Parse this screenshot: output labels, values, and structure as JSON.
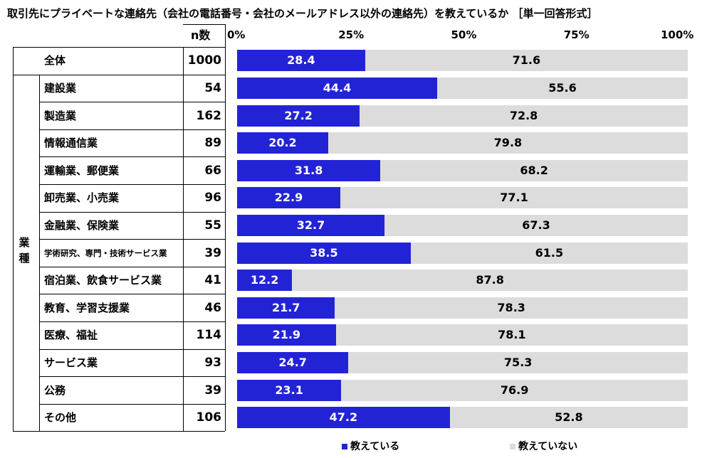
{
  "title": "取引先にプライベートな連絡先（会社の電話番号・会社のメールアドレス以外の連絡先）を教えているか ［単一回答形式］",
  "n_header": "n数",
  "group_label": "業種",
  "axis_ticks": [
    "0%",
    "25%",
    "50%",
    "75%",
    "100%"
  ],
  "legend": [
    {
      "label": "教えている",
      "color": "#2323d6"
    },
    {
      "label": "教えていない",
      "color": "#dcdcdc"
    }
  ],
  "chart_data": {
    "type": "bar",
    "orientation": "horizontal",
    "stacked": true,
    "xlim": [
      0,
      100
    ],
    "categories": [
      "全体",
      "建設業",
      "製造業",
      "情報通信業",
      "運輸業、郵便業",
      "卸売業、小売業",
      "金融業、保険業",
      "学術研究、専門・技術サービス業",
      "宿泊業、飲食サービス業",
      "教育、学習支援業",
      "医療、福祉",
      "サービス業",
      "公務",
      "その他"
    ],
    "n": [
      1000,
      54,
      162,
      89,
      66,
      96,
      55,
      39,
      41,
      46,
      114,
      93,
      39,
      106
    ],
    "series": [
      {
        "name": "教えている",
        "color": "#2323d6",
        "values": [
          28.4,
          44.4,
          27.2,
          20.2,
          31.8,
          22.9,
          32.7,
          38.5,
          12.2,
          21.7,
          21.9,
          24.7,
          23.1,
          47.2
        ]
      },
      {
        "name": "教えていない",
        "color": "#dcdcdc",
        "values": [
          71.6,
          55.6,
          72.8,
          79.8,
          68.2,
          77.1,
          67.3,
          61.5,
          87.8,
          78.3,
          78.1,
          75.3,
          76.9,
          52.8
        ]
      }
    ]
  }
}
